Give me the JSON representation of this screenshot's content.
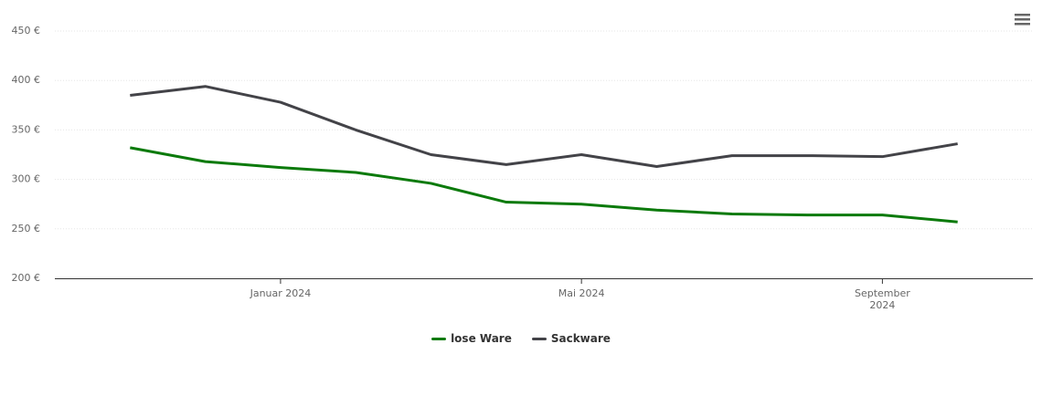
{
  "chart_data": {
    "type": "line",
    "x": [
      "2023-11",
      "2023-12",
      "2024-01",
      "2024-02",
      "2024-03",
      "2024-04",
      "2024-05",
      "2024-06",
      "2024-07",
      "2024-08",
      "2024-09",
      "2024-10"
    ],
    "series": [
      {
        "name": "lose Ware",
        "color": "#0b7a0b",
        "values": [
          332,
          318,
          312,
          307,
          296,
          277,
          275,
          269,
          265,
          264,
          264,
          257
        ]
      },
      {
        "name": "Sackware",
        "color": "#434348",
        "values": [
          385,
          394,
          378,
          350,
          325,
          315,
          325,
          313,
          324,
          324,
          323,
          336
        ]
      }
    ],
    "xlim": [
      "2023-10",
      "2024-11"
    ],
    "xticks": [
      {
        "value": "2024-01",
        "label": "Januar 2024"
      },
      {
        "value": "2024-05",
        "label": "Mai 2024"
      },
      {
        "value": "2024-09",
        "label": "September 2024"
      }
    ],
    "ylim": [
      200,
      450
    ],
    "yticks": [
      {
        "value": 200,
        "label": "200 €"
      },
      {
        "value": 250,
        "label": "250 €"
      },
      {
        "value": 300,
        "label": "300 €"
      },
      {
        "value": 350,
        "label": "350 €"
      },
      {
        "value": 400,
        "label": "400 €"
      },
      {
        "value": 450,
        "label": "450 €"
      }
    ],
    "grid": true,
    "legend": "bottom"
  }
}
